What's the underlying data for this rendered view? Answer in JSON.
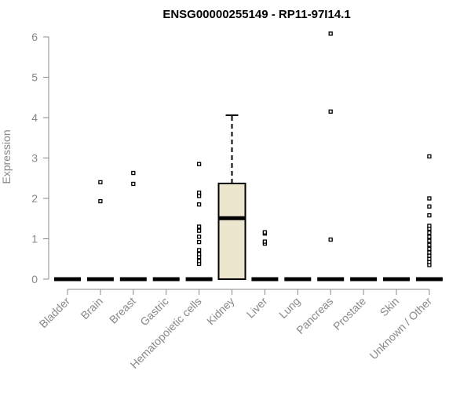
{
  "chart_data": {
    "type": "box",
    "title": "ENSG00000255149 - RP11-97I14.1",
    "xlabel": "",
    "ylabel": "Expression",
    "ylim": [
      0,
      6
    ],
    "yticks": [
      0,
      1,
      2,
      3,
      4,
      5,
      6
    ],
    "grid": false,
    "colors": {
      "box_fill": "#ece6cf",
      "line": "#000000",
      "axis": "#888888",
      "text_muted": "#888888"
    },
    "categories": [
      "Bladder",
      "Brain",
      "Breast",
      "Gastric",
      "Hematopoietic cells",
      "Kidney",
      "Liver",
      "Lung",
      "Pancreas",
      "Prostate",
      "Skin",
      "Unknown / Other"
    ],
    "boxes": [
      {
        "category": "Bladder",
        "min": 0,
        "q1": 0,
        "median": 0,
        "q3": 0,
        "max": 0,
        "outliers": []
      },
      {
        "category": "Brain",
        "min": 0,
        "q1": 0,
        "median": 0,
        "q3": 0,
        "max": 0,
        "outliers": [
          1.93,
          2.4
        ]
      },
      {
        "category": "Breast",
        "min": 0,
        "q1": 0,
        "median": 0,
        "q3": 0,
        "max": 0,
        "outliers": [
          2.36,
          2.63
        ]
      },
      {
        "category": "Gastric",
        "min": 0,
        "q1": 0,
        "median": 0,
        "q3": 0,
        "max": 0,
        "outliers": []
      },
      {
        "category": "Hematopoietic cells",
        "min": 0,
        "q1": 0,
        "median": 0,
        "q3": 0,
        "max": 0,
        "outliers": [
          0.38,
          0.45,
          0.55,
          0.62,
          0.72,
          0.92,
          1.05,
          1.2,
          1.3,
          1.85,
          2.06,
          2.14,
          2.85
        ]
      },
      {
        "category": "Kidney",
        "min": 0,
        "q1": 0,
        "median": 1.51,
        "q3": 2.37,
        "max": 4.06,
        "outliers": []
      },
      {
        "category": "Liver",
        "min": 0,
        "q1": 0,
        "median": 0,
        "q3": 0,
        "max": 0,
        "outliers": [
          0.88,
          0.93,
          1.13,
          1.16
        ]
      },
      {
        "category": "Lung",
        "min": 0,
        "q1": 0,
        "median": 0,
        "q3": 0,
        "max": 0,
        "outliers": []
      },
      {
        "category": "Pancreas",
        "min": 0,
        "q1": 0,
        "median": 0,
        "q3": 0,
        "max": 0,
        "outliers": [
          0.98,
          4.15,
          6.08
        ]
      },
      {
        "category": "Prostate",
        "min": 0,
        "q1": 0,
        "median": 0,
        "q3": 0,
        "max": 0,
        "outliers": []
      },
      {
        "category": "Skin",
        "min": 0,
        "q1": 0,
        "median": 0,
        "q3": 0,
        "max": 0,
        "outliers": []
      },
      {
        "category": "Unknown / Other",
        "min": 0,
        "q1": 0,
        "median": 0,
        "q3": 0,
        "max": 0,
        "outliers": [
          0.35,
          0.42,
          0.5,
          0.58,
          0.66,
          0.75,
          0.85,
          0.95,
          1.05,
          1.15,
          1.25,
          1.32,
          1.58,
          1.8,
          2.0,
          3.04
        ]
      }
    ]
  }
}
